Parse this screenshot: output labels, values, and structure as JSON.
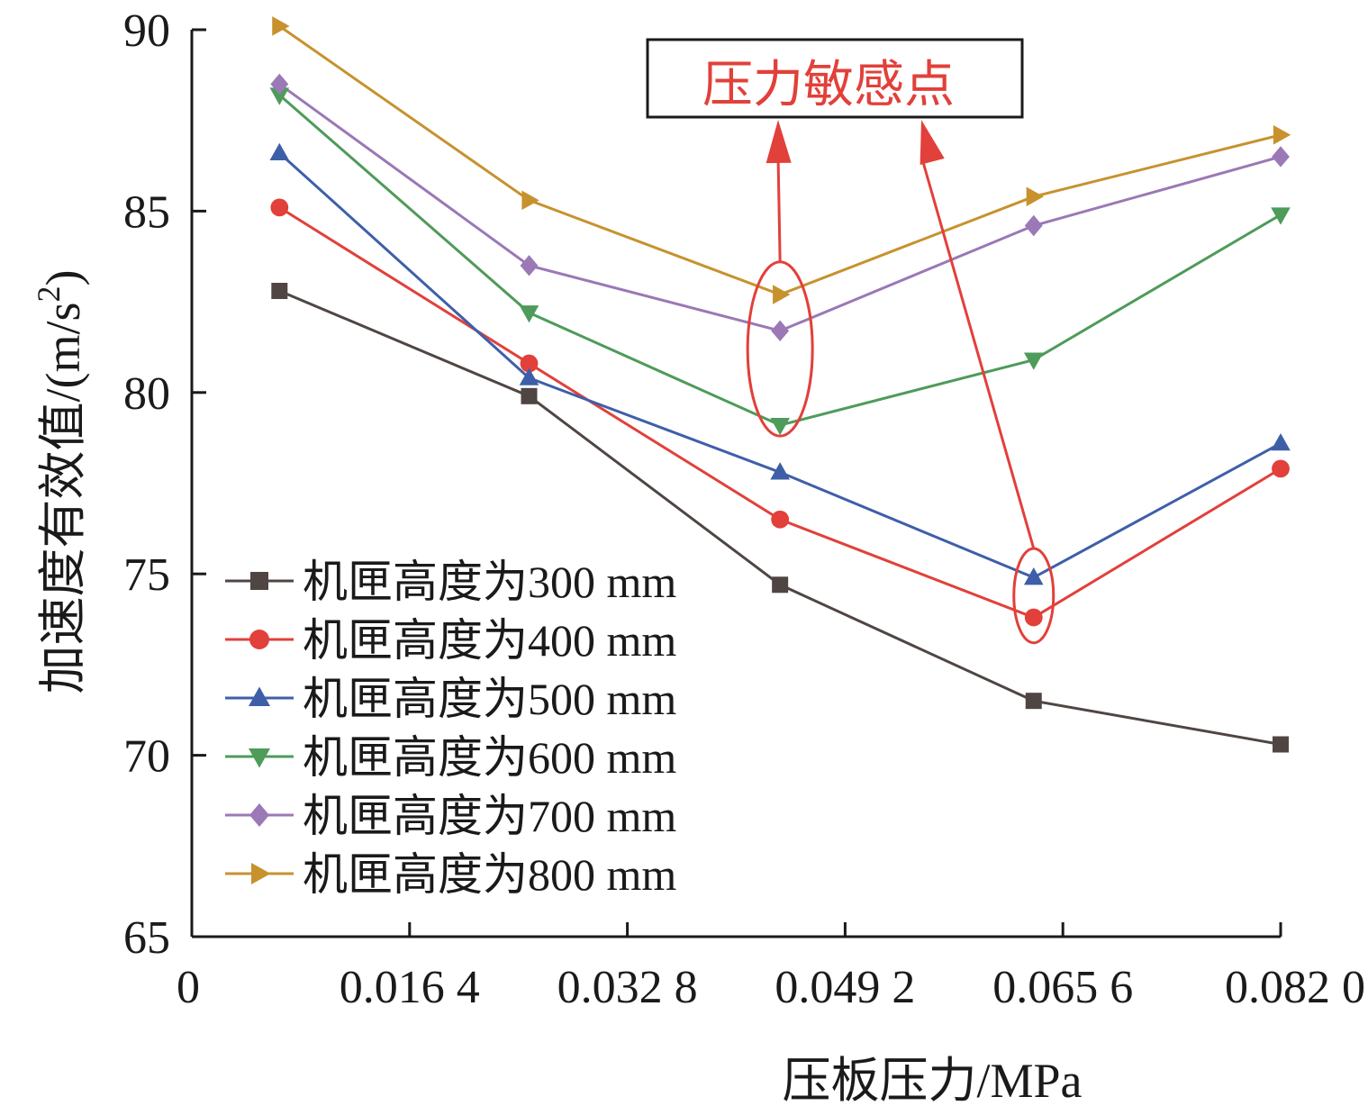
{
  "chart_data": {
    "type": "line",
    "title": "",
    "xlabel": "压板压力/MPa",
    "ylabel": "加速度有效值/(m/s²)",
    "ylabel_main": "加速度有效值/(m/s",
    "ylabel_sup": "2",
    "ylabel_tail": ")",
    "xlim": [
      0,
      0.082
    ],
    "ylim": [
      65,
      90
    ],
    "x_ticks": [
      0,
      0.0164,
      0.0328,
      0.0492,
      0.0656,
      0.082
    ],
    "x_tick_labels": [
      "0",
      "0.016 4",
      "0.032 8",
      "0.049 2",
      "0.065 6",
      "0.082 0"
    ],
    "y_ticks": [
      65,
      70,
      75,
      80,
      85,
      90
    ],
    "y_tick_labels": [
      "65",
      "70",
      "75",
      "80",
      "85",
      "90"
    ],
    "x": [
      0.0066,
      0.0254,
      0.0443,
      0.0634,
      0.082
    ],
    "series": [
      {
        "name": "机匣高度为300 mm",
        "color": "#4f4643",
        "marker": "square",
        "values": [
          82.8,
          79.9,
          74.7,
          71.5,
          70.3
        ]
      },
      {
        "name": "机匣高度为400 mm",
        "color": "#e2403a",
        "marker": "circle",
        "values": [
          85.1,
          80.8,
          76.5,
          73.8,
          77.9
        ]
      },
      {
        "name": "机匣高度为500 mm",
        "color": "#3e5fa8",
        "marker": "triangle-up",
        "values": [
          86.6,
          80.4,
          77.8,
          74.9,
          78.6
        ]
      },
      {
        "name": "机匣高度为600 mm",
        "color": "#4e9b5a",
        "marker": "triangle-down",
        "values": [
          88.2,
          82.2,
          79.1,
          80.9,
          84.9
        ]
      },
      {
        "name": "机匣高度为700 mm",
        "color": "#9b78b6",
        "marker": "diamond",
        "values": [
          88.5,
          83.5,
          81.7,
          84.6,
          86.5
        ]
      },
      {
        "name": "机匣高度为800 mm",
        "color": "#c7922e",
        "marker": "triangle-right",
        "values": [
          90.1,
          85.3,
          82.7,
          85.4,
          87.1
        ]
      }
    ],
    "legend_position": "bottom-left",
    "grid": false,
    "annotation": {
      "text": "压力敏感点",
      "color": "#e2403a",
      "targets": [
        {
          "x": 0.0443,
          "y_range": [
            78.8,
            83.6
          ]
        },
        {
          "x": 0.0634,
          "y_range": [
            73.1,
            75.7
          ]
        }
      ]
    }
  }
}
